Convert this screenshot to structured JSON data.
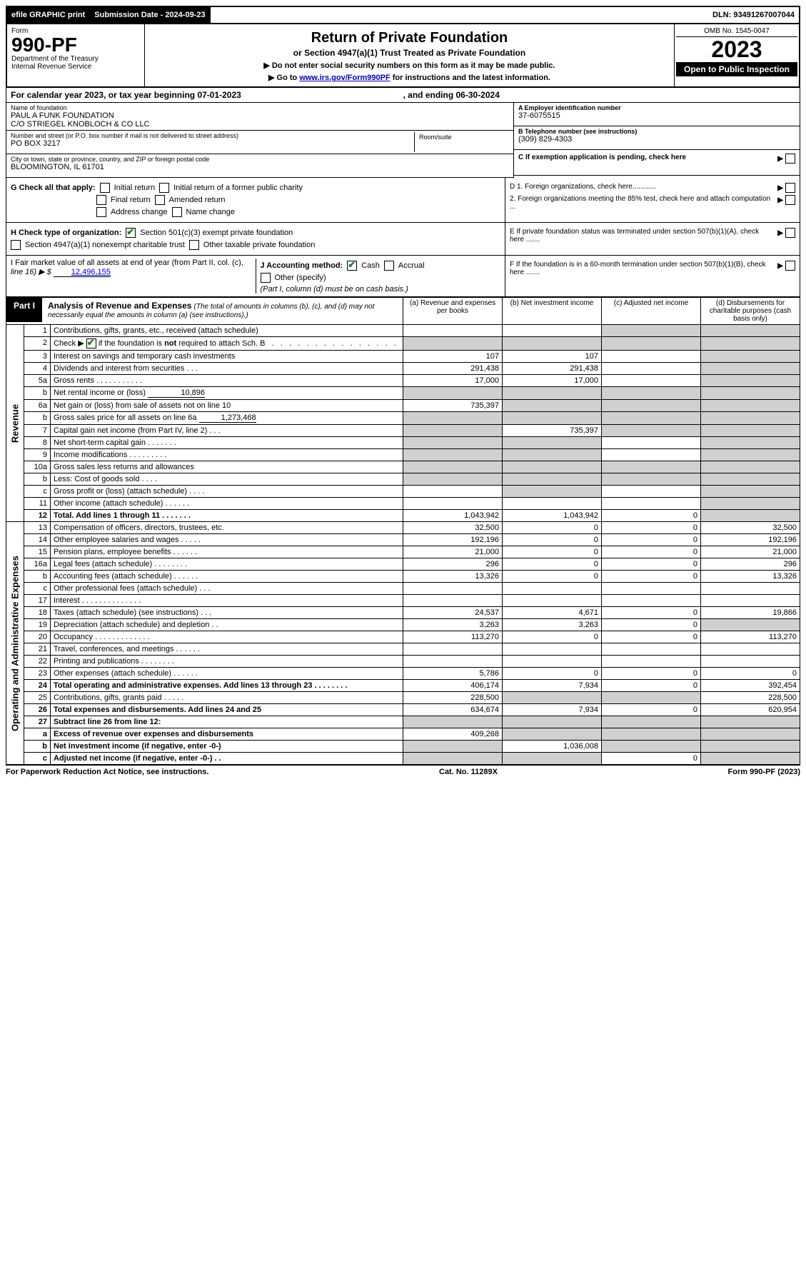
{
  "topbar": {
    "efile": "efile GRAPHIC print",
    "sub_label": "Submission Date - 2024-09-23",
    "dln": "DLN: 93491267007044"
  },
  "header": {
    "form": "Form",
    "number": "990-PF",
    "dept": "Department of the Treasury",
    "irs": "Internal Revenue Service",
    "title": "Return of Private Foundation",
    "subtitle": "or Section 4947(a)(1) Trust Treated as Private Foundation",
    "instr1": "▶ Do not enter social security numbers on this form as it may be made public.",
    "instr2_pre": "▶ Go to ",
    "instr2_link": "www.irs.gov/Form990PF",
    "instr2_post": " for instructions and the latest information.",
    "omb": "OMB No. 1545-0047",
    "year": "2023",
    "open": "Open to Public Inspection"
  },
  "calyear": {
    "pre": "For calendar year 2023, or tax year beginning 07-01-2023",
    "mid": ", and ending 06-30-2024"
  },
  "entity": {
    "name_label": "Name of foundation",
    "name1": "PAUL A FUNK FOUNDATION",
    "name2": "C/O STRIEGEL KNOBLOCH & CO LLC",
    "addr_label": "Number and street (or P.O. box number if mail is not delivered to street address)",
    "addr": "PO BOX 3217",
    "room_label": "Room/suite",
    "city_label": "City or town, state or province, country, and ZIP or foreign postal code",
    "city": "BLOOMINGTON, IL  61701",
    "a_label": "A Employer identification number",
    "a_val": "37-6075515",
    "b_label": "B Telephone number (see instructions)",
    "b_val": "(309) 829-4303",
    "c_label": "C If exemption application is pending, check here"
  },
  "g": {
    "label": "G Check all that apply:",
    "initial": "Initial return",
    "initial_former": "Initial return of a former public charity",
    "final": "Final return",
    "amended": "Amended return",
    "addr_change": "Address change",
    "name_change": "Name change"
  },
  "h": {
    "label": "H Check type of organization:",
    "opt1": "Section 501(c)(3) exempt private foundation",
    "opt2": "Section 4947(a)(1) nonexempt charitable trust",
    "opt3": "Other taxable private foundation"
  },
  "i": {
    "label": "I Fair market value of all assets at end of year (from Part II, col. (c),",
    "line": "line 16) ▶ $",
    "val": "12,496,155"
  },
  "j": {
    "label": "J Accounting method:",
    "cash": "Cash",
    "accrual": "Accrual",
    "other": "Other (specify)",
    "note": "(Part I, column (d) must be on cash basis.)"
  },
  "d": {
    "d1": "D 1. Foreign organizations, check here............",
    "d2": "2. Foreign organizations meeting the 85% test, check here and attach computation ...",
    "e": "E  If private foundation status was terminated under section 507(b)(1)(A), check here .......",
    "f": "F  If the foundation is in a 60-month termination under section 507(b)(1)(B), check here ......."
  },
  "part1": {
    "label": "Part I",
    "title": "Analysis of Revenue and Expenses",
    "note": "(The total of amounts in columns (b), (c), and (d) may not necessarily equal the amounts in column (a) (see instructions).)",
    "cols": {
      "a": "(a) Revenue and expenses per books",
      "b": "(b) Net investment income",
      "c": "(c) Adjusted net income",
      "d": "(d) Disbursements for charitable purposes (cash basis only)"
    }
  },
  "vert": {
    "revenue": "Revenue",
    "expenses": "Operating and Administrative Expenses"
  },
  "rows": [
    {
      "n": "1",
      "d": "Contributions, gifts, grants, etc., received (attach schedule)",
      "a": "",
      "b": "",
      "c_shade": true,
      "dd_shade": true
    },
    {
      "n": "2",
      "d": "Check ▶ ☑ if the foundation is not required to attach Sch. B   .  .  .  .  .  .  .  .  .  .  .  .  .  .  .  .",
      "a_shade": true,
      "b_shade": true,
      "c_shade": true,
      "dd_shade": true,
      "bold_check": true
    },
    {
      "n": "3",
      "d": "Interest on savings and temporary cash investments",
      "a": "107",
      "b": "107",
      "dd_shade": true
    },
    {
      "n": "4",
      "d": "Dividends and interest from securities   .   .   .",
      "a": "291,438",
      "b": "291,438",
      "dd_shade": true
    },
    {
      "n": "5a",
      "d": "Gross rents    .   .   .   .   .   .   .   .   .   .   .",
      "a": "17,000",
      "b": "17,000",
      "dd_shade": true
    },
    {
      "n": "b",
      "d": "Net rental income or (loss)",
      "inline": "10,896",
      "a_shade": true,
      "b_shade": true,
      "c_shade": true,
      "dd_shade": true
    },
    {
      "n": "6a",
      "d": "Net gain or (loss) from sale of assets not on line 10",
      "a": "735,397",
      "b_shade": true,
      "c_shade": true,
      "dd_shade": true
    },
    {
      "n": "b",
      "d": "Gross sales price for all assets on line 6a",
      "inline": "1,273,468",
      "a_shade": true,
      "b_shade": true,
      "c_shade": true,
      "dd_shade": true
    },
    {
      "n": "7",
      "d": "Capital gain net income (from Part IV, line 2)   .   .   .",
      "a_shade": true,
      "b": "735,397",
      "c_shade": true,
      "dd_shade": true
    },
    {
      "n": "8",
      "d": "Net short-term capital gain  .   .   .   .   .   .   .",
      "a_shade": true,
      "b_shade": true,
      "dd_shade": true
    },
    {
      "n": "9",
      "d": "Income modifications  .   .   .   .   .   .   .   .   .",
      "a_shade": true,
      "b_shade": true,
      "dd_shade": true
    },
    {
      "n": "10a",
      "d": "Gross sales less returns and allowances",
      "boxed": true,
      "a_shade": true,
      "b_shade": true,
      "c_shade": true,
      "dd_shade": true
    },
    {
      "n": "b",
      "d": "Less: Cost of goods sold    .   .   .   .",
      "boxed": true,
      "a_shade": true,
      "b_shade": true,
      "c_shade": true,
      "dd_shade": true
    },
    {
      "n": "c",
      "d": "Gross profit or (loss) (attach schedule)    .   .   .   .",
      "b_shade": true,
      "dd_shade": true
    },
    {
      "n": "11",
      "d": "Other income (attach schedule)    .   .   .   .   .   .",
      "dd_shade": true
    },
    {
      "n": "12",
      "d": "Total. Add lines 1 through 11   .   .   .   .   .   .   .",
      "bold": true,
      "a": "1,043,942",
      "b": "1,043,942",
      "c": "0",
      "dd_shade": true
    },
    {
      "n": "13",
      "d": "Compensation of officers, directors, trustees, etc.",
      "a": "32,500",
      "b": "0",
      "c": "0",
      "dd": "32,500"
    },
    {
      "n": "14",
      "d": "Other employee salaries and wages    .   .   .   .   .",
      "a": "192,196",
      "b": "0",
      "c": "0",
      "dd": "192,196"
    },
    {
      "n": "15",
      "d": "Pension plans, employee benefits  .   .   .   .   .   .",
      "a": "21,000",
      "b": "0",
      "c": "0",
      "dd": "21,000"
    },
    {
      "n": "16a",
      "d": "Legal fees (attach schedule)  .   .   .   .   .   .   .   .",
      "a": "296",
      "b": "0",
      "c": "0",
      "dd": "296"
    },
    {
      "n": "b",
      "d": "Accounting fees (attach schedule)  .   .   .   .   .   .",
      "a": "13,326",
      "b": "0",
      "c": "0",
      "dd": "13,326"
    },
    {
      "n": "c",
      "d": "Other professional fees (attach schedule)    .   .   .",
      "a": "",
      "b": "",
      "c": "",
      "dd": ""
    },
    {
      "n": "17",
      "d": "Interest .   .   .   .   .   .   .   .   .   .   .   .   .   .",
      "a": "",
      "b": "",
      "c": "",
      "dd": ""
    },
    {
      "n": "18",
      "d": "Taxes (attach schedule) (see instructions)    .   .   .",
      "a": "24,537",
      "b": "4,671",
      "c": "0",
      "dd": "19,866"
    },
    {
      "n": "19",
      "d": "Depreciation (attach schedule) and depletion    .   .",
      "a": "3,263",
      "b": "3,263",
      "c": "0",
      "dd_shade": true
    },
    {
      "n": "20",
      "d": "Occupancy  .   .   .   .   .   .   .   .   .   .   .   .   .",
      "a": "113,270",
      "b": "0",
      "c": "0",
      "dd": "113,270"
    },
    {
      "n": "21",
      "d": "Travel, conferences, and meetings  .   .   .   .   .   .",
      "a": "",
      "b": "",
      "c": "",
      "dd": ""
    },
    {
      "n": "22",
      "d": "Printing and publications  .   .   .   .   .   .   .   .",
      "a": "",
      "b": "",
      "c": "",
      "dd": ""
    },
    {
      "n": "23",
      "d": "Other expenses (attach schedule)  .   .   .   .   .   .",
      "a": "5,786",
      "b": "0",
      "c": "0",
      "dd": "0"
    },
    {
      "n": "24",
      "d": "Total operating and administrative expenses. Add lines 13 through 23   .   .   .   .   .   .   .   .",
      "bold": true,
      "a": "406,174",
      "b": "7,934",
      "c": "0",
      "dd": "392,454"
    },
    {
      "n": "25",
      "d": "Contributions, gifts, grants paid    .   .   .   .   .",
      "a": "228,500",
      "b_shade": true,
      "c_shade": true,
      "dd": "228,500"
    },
    {
      "n": "26",
      "d": "Total expenses and disbursements. Add lines 24 and 25",
      "bold": true,
      "a": "634,674",
      "b": "7,934",
      "c": "0",
      "dd": "620,954"
    },
    {
      "n": "27",
      "d": "Subtract line 26 from line 12:",
      "bold": true,
      "a_shade": true,
      "b_shade": true,
      "c_shade": true,
      "dd_shade": true
    },
    {
      "n": "a",
      "d": "Excess of revenue over expenses and disbursements",
      "bold": true,
      "a": "409,268",
      "b_shade": true,
      "c_shade": true,
      "dd_shade": true
    },
    {
      "n": "b",
      "d": "Net investment income (if negative, enter -0-)",
      "bold": true,
      "a_shade": true,
      "b": "1,036,008",
      "c_shade": true,
      "dd_shade": true
    },
    {
      "n": "c",
      "d": "Adjusted net income (if negative, enter -0-)   .   .",
      "bold": true,
      "a_shade": true,
      "b_shade": true,
      "c": "0",
      "dd_shade": true
    }
  ],
  "footer": {
    "left": "For Paperwork Reduction Act Notice, see instructions.",
    "mid": "Cat. No. 11289X",
    "right": "Form 990-PF (2023)"
  }
}
